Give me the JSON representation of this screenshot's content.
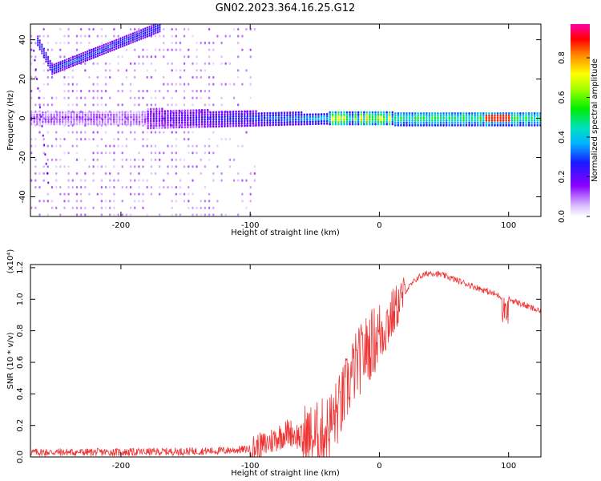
{
  "title": "GN02.2023.364.16.25.G12",
  "top_chart": {
    "type": "heatmap",
    "xlabel": "Height of straight line (km)",
    "ylabel": "Frequency (Hz)",
    "xlim": [
      -270,
      125
    ],
    "ylim": [
      -50,
      48
    ],
    "xticks": [
      -200,
      -100,
      0,
      100
    ],
    "yticks": [
      -40,
      -20,
      0,
      20,
      40
    ],
    "colorbar": {
      "label": "Normalized spectral amplitude",
      "range": [
        0,
        0.97
      ],
      "ticks": [
        "0.0",
        "0.2",
        "0.4",
        "0.6",
        "0.8"
      ]
    }
  },
  "chart_data": {
    "type": "line",
    "xlabel": "Height of straight line (km)",
    "ylabel": "SNR (10 * v/v)",
    "scale_label": "(x10⁴)",
    "xlim": [
      -270,
      125
    ],
    "ylim": [
      0,
      1.22
    ],
    "xticks": [
      -200,
      -100,
      0,
      100
    ],
    "yticks": [
      "0.0",
      "0.2",
      "0.4",
      "0.6",
      "0.8",
      "1.0",
      "1.2"
    ],
    "line_color": "#ee3333",
    "x": [
      -270,
      -250,
      -200,
      -150,
      -120,
      -100,
      -90,
      -80,
      -70,
      -60,
      -50,
      -40,
      -30,
      -20,
      -10,
      0,
      10,
      20,
      30,
      40,
      50,
      60,
      70,
      80,
      90,
      100,
      110,
      125
    ],
    "values": [
      0.03,
      0.03,
      0.03,
      0.035,
      0.04,
      0.05,
      0.07,
      0.12,
      0.16,
      0.12,
      0.12,
      0.18,
      0.32,
      0.55,
      0.68,
      0.78,
      0.9,
      1.05,
      1.14,
      1.17,
      1.15,
      1.12,
      1.09,
      1.06,
      1.03,
      1.0,
      0.97,
      0.92
    ]
  }
}
